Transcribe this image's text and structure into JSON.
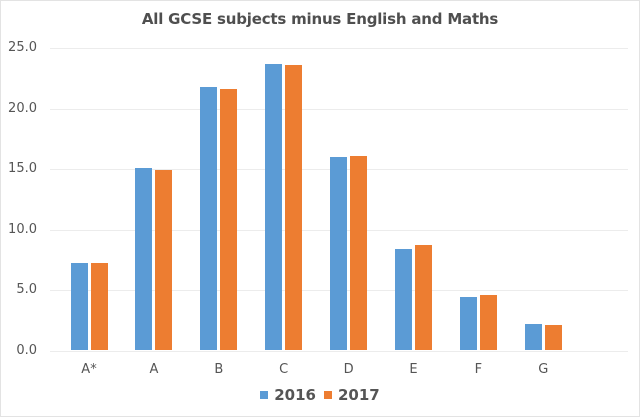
{
  "chart_data": {
    "type": "bar",
    "title": "All GCSE subjects minus English and Maths",
    "xlabel": "",
    "ylabel": "",
    "categories": [
      "A*",
      "A",
      "B",
      "C",
      "D",
      "E",
      "F",
      "G"
    ],
    "series": [
      {
        "name": "2016",
        "color": "#5b9bd5",
        "values": [
          7.2,
          15.1,
          21.8,
          23.7,
          16.0,
          8.4,
          4.4,
          2.2
        ]
      },
      {
        "name": "2017",
        "color": "#ed7d31",
        "values": [
          7.2,
          14.9,
          21.6,
          23.6,
          16.1,
          8.7,
          4.6,
          2.1
        ]
      }
    ],
    "ylim": [
      0,
      25
    ],
    "yticks": [
      "0.0",
      "5.0",
      "10.0",
      "15.0",
      "20.0",
      "25.0"
    ],
    "grid": true,
    "legend_position": "bottom"
  }
}
